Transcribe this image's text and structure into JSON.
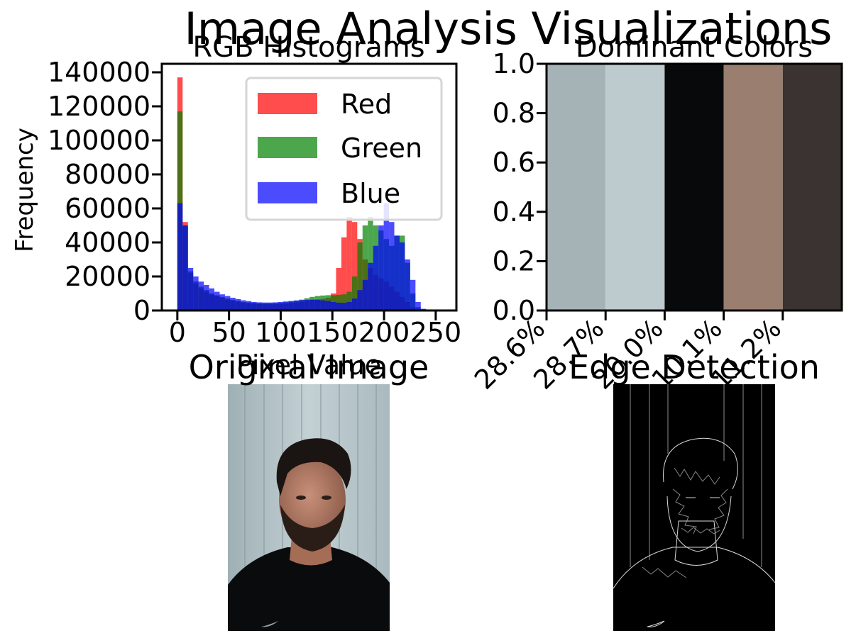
{
  "figure": {
    "title": "Image Analysis Visualizations",
    "panels": {
      "histogram": {
        "title": "RGB Histograms"
      },
      "dominant": {
        "title": "Dominant Colors"
      },
      "original": {
        "title": "Original Image"
      },
      "edges": {
        "title": "Edge Detection"
      }
    }
  },
  "chart_data": [
    {
      "type": "bar",
      "subtype": "histogram",
      "title": "RGB Histograms",
      "xlabel": "Pixel Value",
      "ylabel": "Frequency",
      "xlim": [
        -15,
        270
      ],
      "ylim": [
        0,
        145000
      ],
      "xticks": [
        0,
        50,
        100,
        150,
        200,
        250
      ],
      "yticks": [
        0,
        20000,
        40000,
        60000,
        80000,
        100000,
        120000,
        140000
      ],
      "bin_width": 5.12,
      "bin_starts": [
        0,
        5.12,
        10.24,
        15.36,
        20.48,
        25.6,
        30.72,
        35.84,
        40.96,
        46.08,
        51.2,
        56.32,
        61.44,
        66.56,
        71.68,
        76.8,
        81.92,
        87.04,
        92.16,
        97.28,
        102.4,
        107.52,
        112.64,
        117.76,
        122.88,
        128,
        133.12,
        138.24,
        143.36,
        148.48,
        153.6,
        158.72,
        163.84,
        168.96,
        174.08,
        179.2,
        184.32,
        189.44,
        194.56,
        199.68,
        204.8,
        209.92,
        215.04,
        220.16,
        225.28,
        230.4,
        235.52,
        240.64,
        245.76,
        250.88
      ],
      "legend": {
        "position": "upper right",
        "entries": [
          "Red",
          "Green",
          "Blue"
        ]
      },
      "series": [
        {
          "name": "Red",
          "color": "#ff0000",
          "alpha": 0.7,
          "values": [
            137000,
            52000,
            22000,
            16000,
            13000,
            11000,
            9500,
            8500,
            7500,
            6500,
            5800,
            5200,
            4700,
            4300,
            4000,
            3800,
            3700,
            3700,
            3700,
            3800,
            4000,
            4300,
            4700,
            5200,
            5800,
            6200,
            6500,
            6800,
            7500,
            10000,
            25000,
            43000,
            55000,
            52000,
            42000,
            30000,
            25000,
            21000,
            19000,
            17000,
            14000,
            11000,
            8000,
            5000,
            2000,
            500,
            100,
            0,
            0,
            0
          ]
        },
        {
          "name": "Green",
          "color": "#008000",
          "alpha": 0.7,
          "values": [
            117000,
            50000,
            23000,
            17000,
            14000,
            12000,
            10000,
            9000,
            8000,
            7000,
            6200,
            5600,
            5000,
            4700,
            4500,
            4300,
            4200,
            4200,
            4300,
            4500,
            4800,
            5200,
            5800,
            6400,
            7200,
            8000,
            8500,
            8800,
            9000,
            9000,
            9200,
            9500,
            11000,
            20000,
            40000,
            50000,
            55000,
            50000,
            47000,
            42000,
            38000,
            44000,
            44000,
            28000,
            10000,
            2000,
            300,
            0,
            0,
            0
          ]
        },
        {
          "name": "Blue",
          "color": "#0000ff",
          "alpha": 0.7,
          "values": [
            63000,
            50000,
            25000,
            20000,
            17000,
            15000,
            13000,
            11000,
            9500,
            8500,
            7500,
            6700,
            6000,
            5500,
            5000,
            4800,
            4700,
            4700,
            4800,
            5000,
            5300,
            5600,
            5900,
            6100,
            6300,
            6400,
            6300,
            6000,
            5600,
            5000,
            4600,
            4500,
            5000,
            7000,
            12000,
            18000,
            28000,
            38000,
            50000,
            63000,
            52000,
            44000,
            40000,
            30000,
            18000,
            5000,
            1000,
            0,
            0,
            0
          ]
        }
      ]
    },
    {
      "type": "bar",
      "title": "Dominant Colors",
      "categories": [
        "28.6%",
        "28.7%",
        "20.0%",
        "10.1%",
        "11.2%"
      ],
      "colors": [
        "#a6b3b6",
        "#bdcbcf",
        "#08090b",
        "#9a7e70",
        "#3a3331"
      ],
      "values": [
        1,
        1,
        1,
        1,
        1
      ],
      "ylim": [
        0,
        1
      ],
      "yticks": [
        0.0,
        0.2,
        0.4,
        0.6,
        0.8,
        1.0
      ],
      "ytick_labels": [
        "0.0",
        "0.2",
        "0.4",
        "0.6",
        "0.8",
        "1.0"
      ],
      "xtick_rotation_deg": 45
    }
  ]
}
